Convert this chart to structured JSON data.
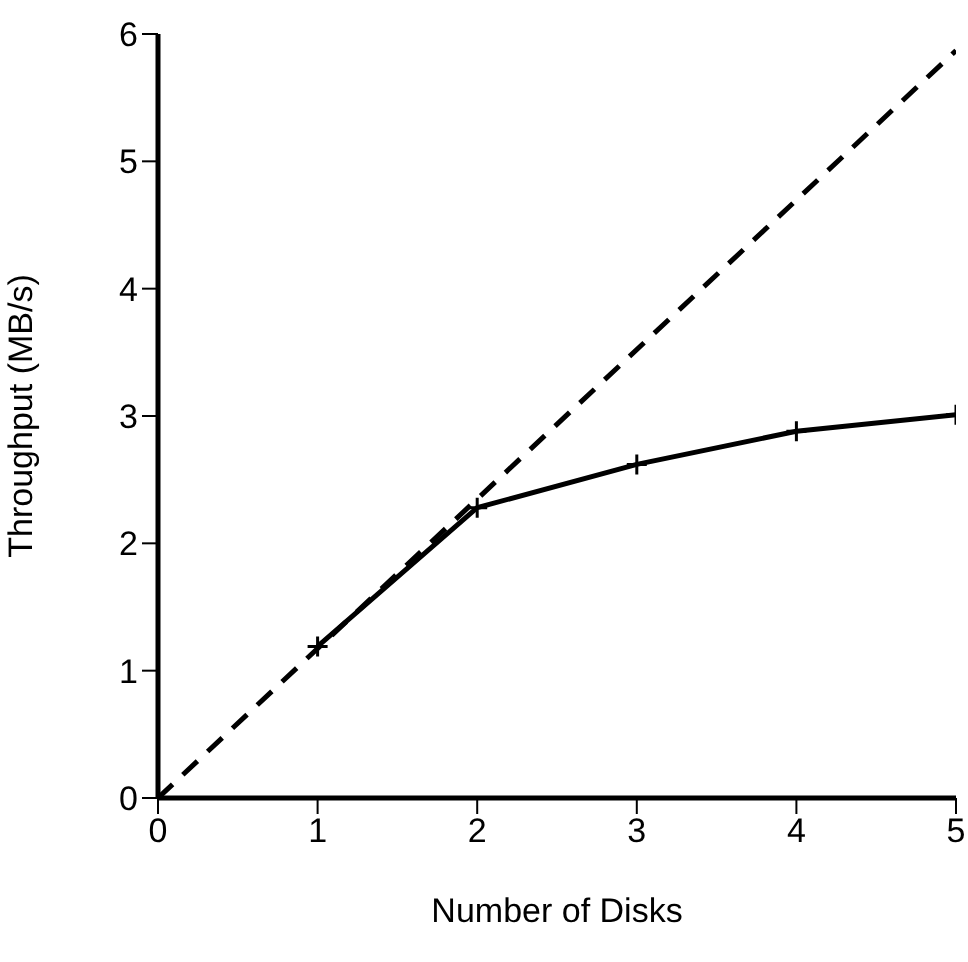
{
  "chart_data": {
    "type": "line",
    "xlabel": "Number of Disks",
    "ylabel": "Throughput (MB/s)",
    "xlim": [
      0,
      5
    ],
    "xticks": [
      0,
      1,
      2,
      3,
      4,
      5
    ],
    "ylim": [
      0,
      6
    ],
    "yticks": [
      0,
      1,
      2,
      3,
      4,
      5,
      6
    ],
    "grid": false,
    "series": [
      {
        "color": "#000000",
        "x": [
          1,
          2,
          3,
          4,
          5
        ],
        "values": [
          1.19,
          2.28,
          2.62,
          2.88,
          3.01
        ],
        "marker": "cross",
        "line_style": "solid"
      },
      {
        "color": "#000000",
        "x": [
          0,
          5
        ],
        "values": [
          0,
          5.87
        ],
        "marker": "none",
        "line_style": "dashed"
      }
    ]
  }
}
